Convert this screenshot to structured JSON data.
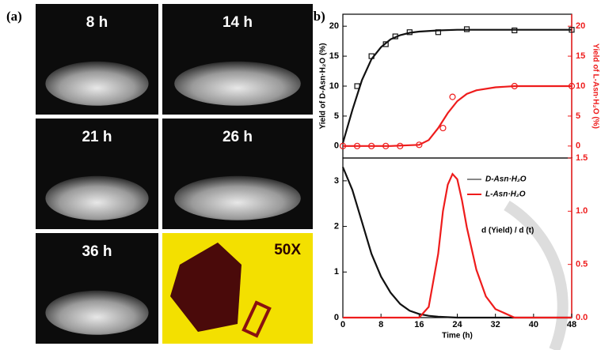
{
  "photos": {
    "panel_label": "(a)",
    "labels": [
      "8 h",
      "14 h",
      "21 h",
      "26 h",
      "36 h",
      "50X"
    ]
  },
  "panel_b_label": "(b)",
  "chart_data": [
    {
      "type": "line",
      "ylabel": "Yield of D-Asn·H₂O (%)",
      "y2label": "Yield of L-Asn·H₂O (%)",
      "xlim": [
        0,
        48
      ],
      "ylim": [
        -2,
        22
      ],
      "yticks": [
        0,
        5,
        10,
        15,
        20
      ],
      "y2lim": [
        -2,
        22
      ],
      "y2ticks": [
        0,
        5,
        10,
        15,
        20
      ],
      "series": [
        {
          "color": "#111111",
          "marker": "square",
          "x": [
            3,
            6,
            9,
            11,
            14,
            20,
            26,
            36,
            48
          ],
          "values": [
            10,
            15,
            17,
            18.3,
            19,
            19,
            19.5,
            19.3,
            19.4
          ]
        },
        {
          "color": "#111111",
          "x": [
            0,
            2,
            4,
            6,
            8,
            10,
            12,
            14,
            16,
            20,
            24,
            30,
            36,
            42,
            48
          ],
          "values": [
            0.5,
            6,
            11,
            14.5,
            16.5,
            17.8,
            18.5,
            18.9,
            19.1,
            19.3,
            19.4,
            19.4,
            19.4,
            19.4,
            19.4
          ]
        },
        {
          "color": "#ee1c1c",
          "marker": "circle",
          "axis": "y2",
          "x": [
            0,
            3,
            6,
            9,
            12,
            16,
            21,
            23,
            36,
            48
          ],
          "values": [
            0,
            0,
            0,
            0,
            0,
            0.2,
            3,
            8.2,
            10,
            10
          ]
        },
        {
          "color": "#ee1c1c",
          "axis": "y2",
          "x": [
            0,
            10,
            16,
            18,
            20,
            22,
            24,
            26,
            28,
            32,
            36,
            40,
            48
          ],
          "values": [
            0,
            0,
            0.2,
            1,
            3,
            5.5,
            7.5,
            8.7,
            9.3,
            9.8,
            10,
            10,
            10
          ]
        }
      ]
    },
    {
      "type": "line",
      "xlabel": "Time (h)",
      "annotation": "d (Yield) / d (t)",
      "xlim": [
        0,
        48
      ],
      "xticks": [
        0,
        8,
        16,
        24,
        32,
        40,
        48
      ],
      "ylim": [
        0,
        3.5
      ],
      "yticks": [
        0,
        1,
        2,
        3
      ],
      "y2lim": [
        0,
        1.5
      ],
      "y2ticks": [
        {
          "value": 0,
          "label": "0.0"
        },
        {
          "value": 0.5,
          "label": "0.5"
        },
        {
          "value": 1,
          "label": "1.0"
        },
        {
          "value": 1.5,
          "label": "1.5"
        }
      ],
      "series": [
        {
          "name": "D-Asn·H₂O",
          "color": "#111111",
          "x": [
            0,
            2,
            4,
            6,
            8,
            10,
            12,
            14,
            16,
            18,
            20,
            24,
            30,
            48
          ],
          "values": [
            3.3,
            2.8,
            2.1,
            1.4,
            0.9,
            0.55,
            0.3,
            0.15,
            0.08,
            0.04,
            0.02,
            0,
            0,
            0
          ]
        },
        {
          "name": "L-Asn·H₂O",
          "color": "#ee1c1c",
          "axis": "y2",
          "x": [
            0,
            16,
            18,
            20,
            21,
            22,
            23,
            24,
            25,
            26,
            28,
            30,
            32,
            36,
            48
          ],
          "values": [
            0,
            0,
            0.1,
            0.6,
            1.0,
            1.25,
            1.35,
            1.3,
            1.1,
            0.85,
            0.45,
            0.2,
            0.08,
            0,
            0
          ]
        }
      ]
    }
  ]
}
